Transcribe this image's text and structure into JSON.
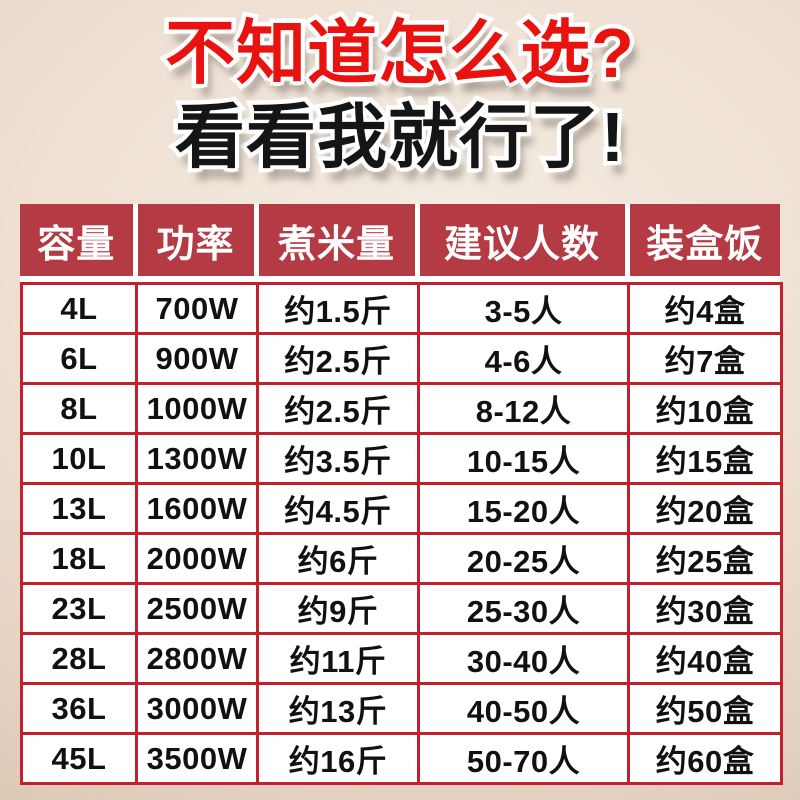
{
  "title": {
    "line1": "不知道怎么选?",
    "line2": "看看我就行了!"
  },
  "table": {
    "headers": [
      "容量",
      "功率",
      "煮米量",
      "建议人数",
      "装盒饭"
    ],
    "rows": [
      [
        "4L",
        "700W",
        "约1.5斤",
        "3-5人",
        "约4盒"
      ],
      [
        "6L",
        "900W",
        "约2.5斤",
        "4-6人",
        "约7盒"
      ],
      [
        "8L",
        "1000W",
        "约2.5斤",
        "8-12人",
        "约10盒"
      ],
      [
        "10L",
        "1300W",
        "约3.5斤",
        "10-15人",
        "约15盒"
      ],
      [
        "13L",
        "1600W",
        "约4.5斤",
        "15-20人",
        "约20盒"
      ],
      [
        "18L",
        "2000W",
        "约6斤",
        "20-25人",
        "约25盒"
      ],
      [
        "23L",
        "2500W",
        "约9斤",
        "25-30人",
        "约30盒"
      ],
      [
        "28L",
        "2800W",
        "约11斤",
        "30-40人",
        "约40盒"
      ],
      [
        "36L",
        "3000W",
        "约13斤",
        "40-50人",
        "约50盒"
      ],
      [
        "45L",
        "3500W",
        "约16斤",
        "50-70人",
        "约60盒"
      ]
    ]
  },
  "chart_data": {
    "type": "table",
    "title": "不知道怎么选? 看看我就行了!",
    "columns": [
      "容量",
      "功率",
      "煮米量",
      "建议人数",
      "装盒饭"
    ],
    "rows": [
      [
        "4L",
        "700W",
        "约1.5斤",
        "3-5人",
        "约4盒"
      ],
      [
        "6L",
        "900W",
        "约2.5斤",
        "4-6人",
        "约7盒"
      ],
      [
        "8L",
        "1000W",
        "约2.5斤",
        "8-12人",
        "约10盒"
      ],
      [
        "10L",
        "1300W",
        "约3.5斤",
        "10-15人",
        "约15盒"
      ],
      [
        "13L",
        "1600W",
        "约4.5斤",
        "15-20人",
        "约20盒"
      ],
      [
        "18L",
        "2000W",
        "约6斤",
        "20-25人",
        "约25盒"
      ],
      [
        "23L",
        "2500W",
        "约9斤",
        "25-30人",
        "约30盒"
      ],
      [
        "28L",
        "2800W",
        "约11斤",
        "30-40人",
        "约40盒"
      ],
      [
        "36L",
        "3000W",
        "约13斤",
        "40-50人",
        "约50盒"
      ],
      [
        "45L",
        "3500W",
        "约16斤",
        "50-70人",
        "约60盒"
      ]
    ],
    "capacity_liters": [
      4,
      6,
      8,
      10,
      13,
      18,
      23,
      28,
      36,
      45
    ],
    "power_watts": [
      700,
      900,
      1000,
      1300,
      1600,
      2000,
      2500,
      2800,
      3000,
      3500
    ]
  },
  "colors": {
    "title_red": "#e8120f",
    "title_black": "#151515",
    "title_outline": "#ffffff",
    "header_background": "#b43a44",
    "header_text": "#ffffff",
    "grid_border_red": "#c2202c",
    "cell_background": "#ffffff",
    "cell_text": "#111111",
    "page_background": "#ead9cb"
  }
}
